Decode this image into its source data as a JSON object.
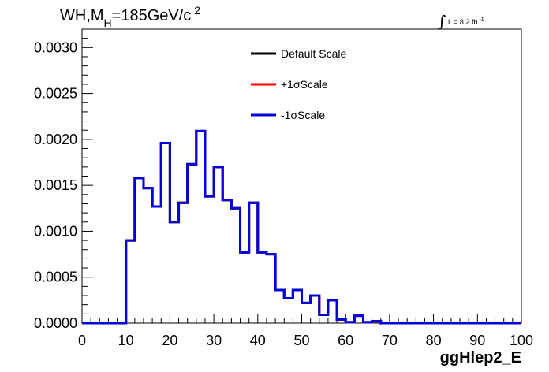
{
  "chart_data": {
    "type": "line",
    "title": {
      "main": "WH,M",
      "sub": "H",
      "rest": "=185GeV/c",
      "sup": "2"
    },
    "lumi": {
      "symbol": "∫",
      "text": "L = 8.2 fb",
      "sup": "-1"
    },
    "xlabel": "ggHlep2_E",
    "ylabel": "",
    "xlim": [
      0,
      100
    ],
    "ylim": [
      0,
      0.0032
    ],
    "x_ticks": [
      "0",
      "10",
      "20",
      "30",
      "40",
      "50",
      "60",
      "70",
      "80",
      "90",
      "100"
    ],
    "y_ticks": [
      "0.0000",
      "0.0005",
      "0.0010",
      "0.0015",
      "0.0020",
      "0.0025",
      "0.0030"
    ],
    "bin_edges": [
      0,
      2,
      4,
      6,
      8,
      10,
      12,
      14,
      16,
      18,
      20,
      22,
      24,
      26,
      28,
      30,
      32,
      34,
      36,
      38,
      40,
      42,
      44,
      46,
      48,
      50,
      52,
      54,
      56,
      58,
      60,
      62,
      64,
      66,
      68,
      70,
      72,
      74,
      76,
      78,
      80,
      82,
      84,
      86,
      88,
      90,
      92,
      94,
      96,
      98,
      100
    ],
    "series": [
      {
        "name": "Default Scale",
        "color": "#000000",
        "values": [
          0,
          0,
          0,
          0,
          0,
          0.0009,
          0.00158,
          0.00147,
          0.00127,
          0.00196,
          0.0011,
          0.00131,
          0.00173,
          0.00209,
          0.00138,
          0.0017,
          0.00134,
          0.00125,
          0.00077,
          0.00131,
          0.00077,
          0.00075,
          0.00036,
          0.00027,
          0.00036,
          0.00022,
          0.0003,
          9e-05,
          0.00025,
          4e-05,
          1e-05,
          8e-05,
          1e-05,
          2e-05,
          0,
          0,
          0,
          0,
          0,
          0,
          0,
          0,
          0,
          0,
          0,
          0,
          0,
          0,
          0,
          0
        ]
      },
      {
        "name": "+1σScale",
        "color": "#ff0000",
        "values": [
          0,
          0,
          0,
          0,
          0,
          0.0009,
          0.00158,
          0.00147,
          0.00127,
          0.00196,
          0.0011,
          0.00131,
          0.00173,
          0.00209,
          0.00138,
          0.0017,
          0.00134,
          0.00125,
          0.00077,
          0.00131,
          0.00077,
          0.00075,
          0.00036,
          0.00027,
          0.00036,
          0.00022,
          0.0003,
          9e-05,
          0.00025,
          4e-05,
          1e-05,
          8e-05,
          1e-05,
          2e-05,
          0,
          0,
          0,
          0,
          0,
          0,
          0,
          0,
          0,
          0,
          0,
          0,
          0,
          0,
          0,
          0
        ]
      },
      {
        "name": "-1σScale",
        "color": "#0000dd",
        "values": [
          0,
          0,
          0,
          0,
          0,
          0.0009,
          0.00158,
          0.00147,
          0.00127,
          0.00196,
          0.0011,
          0.00131,
          0.00173,
          0.00209,
          0.00138,
          0.0017,
          0.00134,
          0.00125,
          0.00077,
          0.00131,
          0.00077,
          0.00075,
          0.00036,
          0.00027,
          0.00036,
          0.00022,
          0.0003,
          9e-05,
          0.00025,
          4e-05,
          1e-05,
          8e-05,
          1e-05,
          2e-05,
          0,
          0,
          0,
          0,
          0,
          0,
          0,
          0,
          0,
          0,
          0,
          0,
          0,
          0,
          0,
          0
        ]
      }
    ],
    "legend_position": "top-center",
    "grid": false
  }
}
